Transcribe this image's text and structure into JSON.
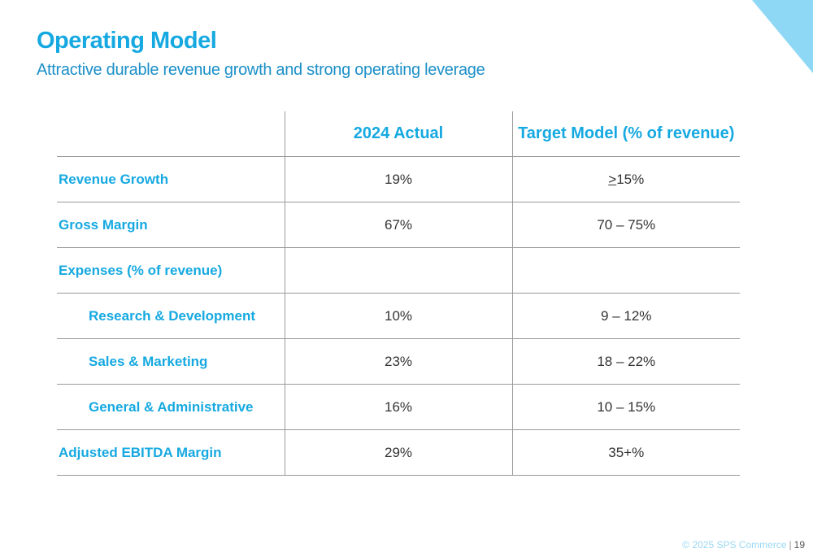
{
  "slide": {
    "title": "Operating Model",
    "subtitle": "Attractive durable revenue growth and strong operating leverage"
  },
  "table": {
    "headers": [
      "",
      "2024 Actual",
      "Target Model (% of revenue)"
    ],
    "rows": [
      {
        "label": "Revenue Growth",
        "actual": "19%",
        "target_sign": ">",
        "target": "15%"
      },
      {
        "label": "Gross Margin",
        "actual": "67%",
        "target": "70 – 75%"
      },
      {
        "label": "Expenses (% of revenue)",
        "actual": "",
        "target": ""
      },
      {
        "label": "Research & Development",
        "actual": "10%",
        "target": "9 – 12%"
      },
      {
        "label": "Sales & Marketing",
        "actual": "23%",
        "target": "18 – 22%"
      },
      {
        "label": "General & Administrative",
        "actual": "16%",
        "target": "10 – 15%"
      },
      {
        "label": "Adjusted EBITDA Margin",
        "actual": "29%",
        "target": "35+%"
      }
    ]
  },
  "footer": {
    "copyright": "© 2025 SPS Commerce",
    "divider": "|",
    "page_number": "19"
  },
  "colors": {
    "accent": "#16a9e1",
    "corner": "#8fd8f5",
    "text": "#333333",
    "rule": "#9a9a9a"
  }
}
